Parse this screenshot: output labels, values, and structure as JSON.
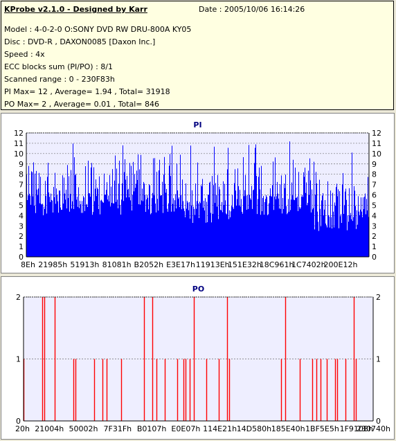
{
  "header": {
    "title": "KProbe v2.1.0 - Designed by Karr",
    "date": "Date : 2005/10/06 16:14:26",
    "lines": [
      "Model : 4-0-2-0 O:SONY    DVD RW DRU-800A  KY05",
      "Disc : DVD-R , DAXON0085 [Daxon Inc.]",
      "Speed : 4x",
      "ECC blocks sum (PI/PO) : 8/1",
      "Scanned range : 0 - 230F83h",
      "PI Max= 12 , Average= 1.94 , Total= 31918",
      "PO Max= 2 , Average= 0.01 , Total= 846"
    ]
  },
  "colors": {
    "pi": "#0000FF",
    "po": "#FF0000",
    "plot_bg": "#EEEEFF"
  },
  "chart_data": [
    {
      "type": "bar",
      "title": "PI",
      "ylim": [
        0,
        12
      ],
      "yticks": [
        "0",
        "1",
        "2",
        "3",
        "4",
        "5",
        "6",
        "7",
        "8",
        "9",
        "10",
        "11",
        "12"
      ],
      "xticks": [
        "8Eh",
        "21985h",
        "51913h",
        "81081h",
        "B2052h",
        "E3E17h",
        "11913Eh",
        "151E32h",
        "18C961h",
        "1C7402h",
        "200E12h"
      ],
      "grid": true
    },
    {
      "type": "bar",
      "title": "PO",
      "ylim": [
        0,
        2
      ],
      "yticks": [
        "0",
        "1",
        "2"
      ],
      "xticks": [
        "20h",
        "21004h",
        "50002h",
        "7F31Fh",
        "B0107h",
        "E0E07h",
        "114E21h",
        "14D580h",
        "185E40h",
        "1BF5E5h",
        "1F9108h",
        "230740h"
      ],
      "grid": true
    }
  ]
}
